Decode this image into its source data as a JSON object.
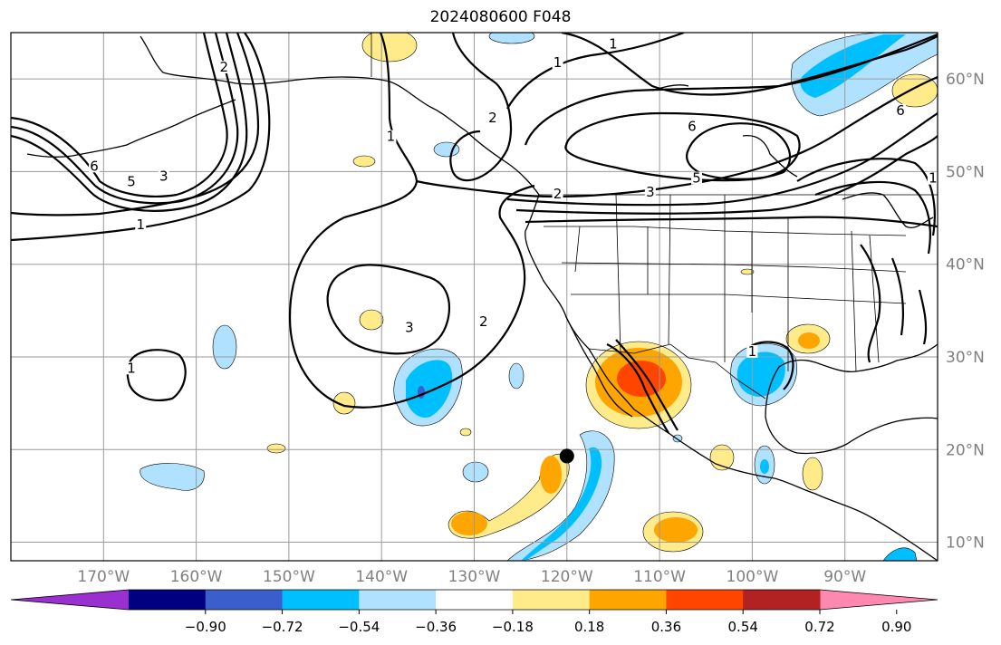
{
  "title": "2024080600 F048",
  "map": {
    "extent": {
      "lon_min": -180,
      "lon_max": -80,
      "lat_min": 8,
      "lat_max": 65
    },
    "lon_ticks": [
      {
        "lon": -170,
        "label": "170°W"
      },
      {
        "lon": -160,
        "label": "160°W"
      },
      {
        "lon": -150,
        "label": "150°W"
      },
      {
        "lon": -140,
        "label": "140°W"
      },
      {
        "lon": -130,
        "label": "130°W"
      },
      {
        "lon": -120,
        "label": "120°W"
      },
      {
        "lon": -110,
        "label": "110°W"
      },
      {
        "lon": -100,
        "label": "100°W"
      },
      {
        "lon": -90,
        "label": "90°W"
      }
    ],
    "lat_ticks": [
      {
        "lat": 60,
        "label": "60°N"
      },
      {
        "lat": 50,
        "label": "50°N"
      },
      {
        "lat": 40,
        "label": "40°N"
      },
      {
        "lat": 30,
        "label": "30°N"
      },
      {
        "lat": 20,
        "label": "20°N"
      },
      {
        "lat": 10,
        "label": "10°N"
      }
    ],
    "marker": {
      "lon": -120,
      "lat": 19.3
    },
    "contour_labels": [
      {
        "text": "6",
        "lon": -171,
        "lat": 50.3
      },
      {
        "text": "5",
        "lon": -167,
        "lat": 48.6
      },
      {
        "text": "3",
        "lon": -163.5,
        "lat": 49.2
      },
      {
        "text": "1",
        "lon": -166,
        "lat": 44
      },
      {
        "text": "2",
        "lon": -157,
        "lat": 61
      },
      {
        "text": "1",
        "lon": -139,
        "lat": 53.5
      },
      {
        "text": "1",
        "lon": -121,
        "lat": 61.5
      },
      {
        "text": "1",
        "lon": -115,
        "lat": 63.5
      },
      {
        "text": "2",
        "lon": -128,
        "lat": 55.5
      },
      {
        "text": "2",
        "lon": -121,
        "lat": 47.3
      },
      {
        "text": "3",
        "lon": -111,
        "lat": 47.5
      },
      {
        "text": "5",
        "lon": -106,
        "lat": 49
      },
      {
        "text": "6",
        "lon": -106.5,
        "lat": 54.6
      },
      {
        "text": "3",
        "lon": -137,
        "lat": 32.9
      },
      {
        "text": "2",
        "lon": -129,
        "lat": 33.5
      },
      {
        "text": "1",
        "lon": -167,
        "lat": 28.5
      },
      {
        "text": "1",
        "lon": -100,
        "lat": 30.3
      },
      {
        "text": "6",
        "lon": -84,
        "lat": 56.3
      },
      {
        "text": "1",
        "lon": -80.5,
        "lat": 49
      }
    ]
  },
  "colorbar": {
    "colors": [
      "#9b30d0",
      "#000080",
      "#3a5fcd",
      "#00bfff",
      "#b0e2ff",
      "#ffffff",
      "#ffeb8a",
      "#ffa500",
      "#ff4500",
      "#b22222",
      "#ff88b0"
    ],
    "levels": [
      "−0.90",
      "−0.72",
      "−0.54",
      "−0.36",
      "−0.18",
      "0.18",
      "0.36",
      "0.54",
      "0.72",
      "0.90"
    ]
  }
}
